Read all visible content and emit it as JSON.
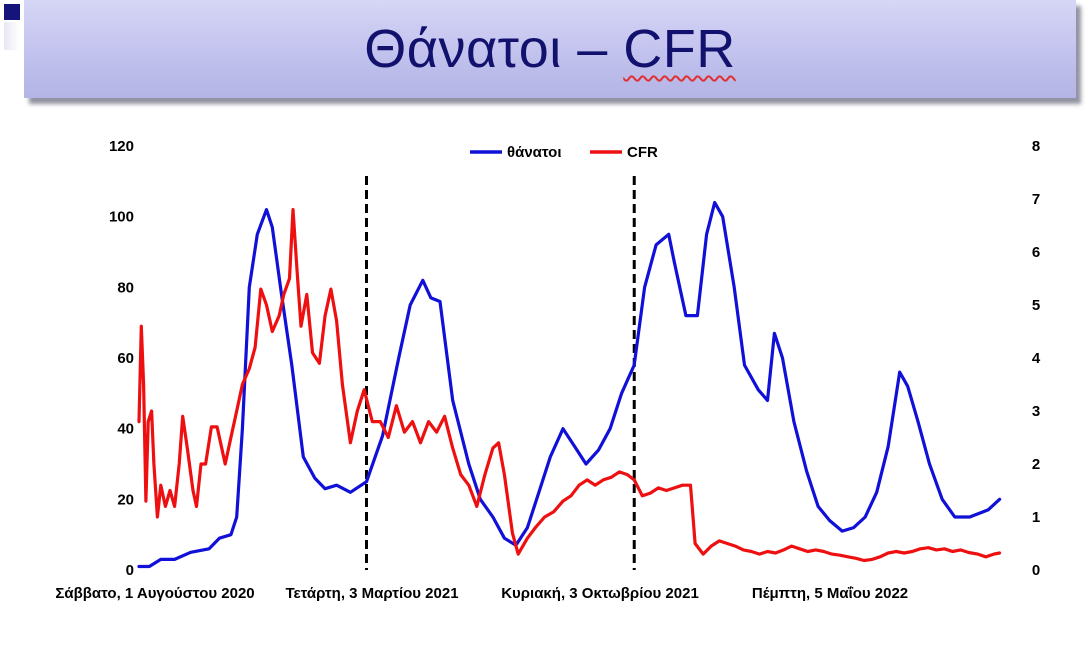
{
  "title": {
    "text_part1": "Θάνατοι – ",
    "text_part2": "CFR"
  },
  "colors": {
    "deaths": "#1010d8",
    "cfr": "#ee1010",
    "title_text": "#12126e",
    "banner": "#c2c2ee"
  },
  "chart_data": {
    "type": "line",
    "title": "",
    "x_tick_labels": [
      "Σάββατο, 1 Αυγούστου 2020",
      "Τετάρτη, 3 Μαρτίου 2021",
      "Κυριακή, 3 Οκτωβρίου 2021",
      "Πέμπτη, 5 Μαΐου 2022"
    ],
    "xlim": [
      "2020-08-01",
      "2022-09-05"
    ],
    "y_left": {
      "lim": [
        0,
        120
      ],
      "ticks": [
        0,
        20,
        40,
        60,
        80,
        100,
        120
      ]
    },
    "y_right": {
      "lim": [
        0,
        8
      ],
      "ticks": [
        0,
        1,
        2,
        3,
        4,
        5,
        6,
        7,
        8
      ]
    },
    "vertical_dashed_lines": [
      "2021-02-15",
      "2021-10-06"
    ],
    "legend": {
      "position": "top-center"
    },
    "grid": false,
    "series": [
      {
        "name": "θάνατοι",
        "axis": "left",
        "points": [
          [
            "2020-08-01",
            1
          ],
          [
            "2020-08-10",
            1
          ],
          [
            "2020-08-20",
            3
          ],
          [
            "2020-09-01",
            3
          ],
          [
            "2020-09-15",
            5
          ],
          [
            "2020-10-01",
            6
          ],
          [
            "2020-10-10",
            9
          ],
          [
            "2020-10-20",
            10
          ],
          [
            "2020-10-25",
            15
          ],
          [
            "2020-10-30",
            40
          ],
          [
            "2020-11-05",
            80
          ],
          [
            "2020-11-12",
            95
          ],
          [
            "2020-11-20",
            102
          ],
          [
            "2020-11-25",
            97
          ],
          [
            "2020-12-03",
            78
          ],
          [
            "2020-12-12",
            58
          ],
          [
            "2020-12-22",
            32
          ],
          [
            "2021-01-01",
            26
          ],
          [
            "2021-01-10",
            23
          ],
          [
            "2021-01-20",
            24
          ],
          [
            "2021-02-01",
            22
          ],
          [
            "2021-02-15",
            25
          ],
          [
            "2021-03-01",
            38
          ],
          [
            "2021-03-15",
            60
          ],
          [
            "2021-03-25",
            75
          ],
          [
            "2021-04-05",
            82
          ],
          [
            "2021-04-12",
            77
          ],
          [
            "2021-04-20",
            76
          ],
          [
            "2021-05-01",
            48
          ],
          [
            "2021-05-15",
            30
          ],
          [
            "2021-05-25",
            20
          ],
          [
            "2021-06-05",
            15
          ],
          [
            "2021-06-15",
            9
          ],
          [
            "2021-06-25",
            7
          ],
          [
            "2021-07-05",
            12
          ],
          [
            "2021-07-15",
            22
          ],
          [
            "2021-07-25",
            32
          ],
          [
            "2021-08-05",
            40
          ],
          [
            "2021-08-15",
            35
          ],
          [
            "2021-08-25",
            30
          ],
          [
            "2021-09-05",
            34
          ],
          [
            "2021-09-15",
            40
          ],
          [
            "2021-09-25",
            50
          ],
          [
            "2021-10-06",
            58
          ],
          [
            "2021-10-15",
            80
          ],
          [
            "2021-10-25",
            92
          ],
          [
            "2021-11-05",
            95
          ],
          [
            "2021-11-10",
            87
          ],
          [
            "2021-11-20",
            72
          ],
          [
            "2021-11-30",
            72
          ],
          [
            "2021-12-08",
            95
          ],
          [
            "2021-12-15",
            104
          ],
          [
            "2021-12-22",
            100
          ],
          [
            "2022-01-01",
            80
          ],
          [
            "2022-01-10",
            58
          ],
          [
            "2022-01-22",
            51
          ],
          [
            "2022-01-30",
            48
          ],
          [
            "2022-02-05",
            67
          ],
          [
            "2022-02-12",
            60
          ],
          [
            "2022-02-22",
            42
          ],
          [
            "2022-03-05",
            28
          ],
          [
            "2022-03-15",
            18
          ],
          [
            "2022-03-25",
            14
          ],
          [
            "2022-04-05",
            11
          ],
          [
            "2022-04-15",
            12
          ],
          [
            "2022-04-25",
            15
          ],
          [
            "2022-05-05",
            22
          ],
          [
            "2022-05-15",
            35
          ],
          [
            "2022-05-25",
            56
          ],
          [
            "2022-06-01",
            52
          ],
          [
            "2022-06-10",
            42
          ],
          [
            "2022-06-20",
            30
          ],
          [
            "2022-07-01",
            20
          ],
          [
            "2022-07-12",
            15
          ],
          [
            "2022-07-25",
            15
          ],
          [
            "2022-08-10",
            17
          ],
          [
            "2022-08-20",
            20
          ]
        ]
      },
      {
        "name": "CFR",
        "axis": "right",
        "points": [
          [
            "2020-08-01",
            2.8
          ],
          [
            "2020-08-03",
            4.6
          ],
          [
            "2020-08-05",
            3.5
          ],
          [
            "2020-08-07",
            1.3
          ],
          [
            "2020-08-09",
            2.8
          ],
          [
            "2020-08-12",
            3.0
          ],
          [
            "2020-08-14",
            2.0
          ],
          [
            "2020-08-17",
            1.0
          ],
          [
            "2020-08-20",
            1.6
          ],
          [
            "2020-08-24",
            1.2
          ],
          [
            "2020-08-28",
            1.5
          ],
          [
            "2020-09-01",
            1.2
          ],
          [
            "2020-09-05",
            2.0
          ],
          [
            "2020-09-08",
            2.9
          ],
          [
            "2020-09-12",
            2.3
          ],
          [
            "2020-09-17",
            1.5
          ],
          [
            "2020-09-20",
            1.2
          ],
          [
            "2020-09-24",
            2.0
          ],
          [
            "2020-09-28",
            2.0
          ],
          [
            "2020-10-03",
            2.7
          ],
          [
            "2020-10-08",
            2.7
          ],
          [
            "2020-10-15",
            2.0
          ],
          [
            "2020-10-20",
            2.5
          ],
          [
            "2020-10-25",
            3.0
          ],
          [
            "2020-10-30",
            3.5
          ],
          [
            "2020-11-05",
            3.8
          ],
          [
            "2020-11-10",
            4.2
          ],
          [
            "2020-11-15",
            5.3
          ],
          [
            "2020-11-20",
            5.0
          ],
          [
            "2020-11-25",
            4.5
          ],
          [
            "2020-12-01",
            4.8
          ],
          [
            "2020-12-05",
            5.2
          ],
          [
            "2020-12-10",
            5.5
          ],
          [
            "2020-12-13",
            6.8
          ],
          [
            "2020-12-17",
            5.5
          ],
          [
            "2020-12-20",
            4.6
          ],
          [
            "2020-12-25",
            5.2
          ],
          [
            "2020-12-30",
            4.1
          ],
          [
            "2021-01-05",
            3.9
          ],
          [
            "2021-01-10",
            4.8
          ],
          [
            "2021-01-15",
            5.3
          ],
          [
            "2021-01-20",
            4.7
          ],
          [
            "2021-01-25",
            3.5
          ],
          [
            "2021-02-01",
            2.4
          ],
          [
            "2021-02-07",
            3.0
          ],
          [
            "2021-02-13",
            3.4
          ],
          [
            "2021-02-20",
            2.8
          ],
          [
            "2021-02-27",
            2.8
          ],
          [
            "2021-03-06",
            2.5
          ],
          [
            "2021-03-13",
            3.1
          ],
          [
            "2021-03-20",
            2.6
          ],
          [
            "2021-03-27",
            2.8
          ],
          [
            "2021-04-03",
            2.4
          ],
          [
            "2021-04-10",
            2.8
          ],
          [
            "2021-04-17",
            2.6
          ],
          [
            "2021-04-24",
            2.9
          ],
          [
            "2021-05-01",
            2.3
          ],
          [
            "2021-05-08",
            1.8
          ],
          [
            "2021-05-15",
            1.6
          ],
          [
            "2021-05-22",
            1.2
          ],
          [
            "2021-05-29",
            1.8
          ],
          [
            "2021-06-05",
            2.3
          ],
          [
            "2021-06-10",
            2.4
          ],
          [
            "2021-06-15",
            1.8
          ],
          [
            "2021-06-22",
            0.7
          ],
          [
            "2021-06-27",
            0.3
          ],
          [
            "2021-07-05",
            0.6
          ],
          [
            "2021-07-12",
            0.8
          ],
          [
            "2021-07-20",
            1.0
          ],
          [
            "2021-07-28",
            1.1
          ],
          [
            "2021-08-05",
            1.3
          ],
          [
            "2021-08-12",
            1.4
          ],
          [
            "2021-08-19",
            1.6
          ],
          [
            "2021-08-26",
            1.7
          ],
          [
            "2021-09-02",
            1.6
          ],
          [
            "2021-09-09",
            1.7
          ],
          [
            "2021-09-16",
            1.75
          ],
          [
            "2021-09-23",
            1.85
          ],
          [
            "2021-09-30",
            1.8
          ],
          [
            "2021-10-06",
            1.7
          ],
          [
            "2021-10-13",
            1.4
          ],
          [
            "2021-10-20",
            1.45
          ],
          [
            "2021-10-27",
            1.55
          ],
          [
            "2021-11-03",
            1.5
          ],
          [
            "2021-11-10",
            1.55
          ],
          [
            "2021-11-17",
            1.6
          ],
          [
            "2021-11-24",
            1.6
          ],
          [
            "2021-11-28",
            0.5
          ],
          [
            "2021-12-05",
            0.3
          ],
          [
            "2021-12-12",
            0.45
          ],
          [
            "2021-12-19",
            0.55
          ],
          [
            "2021-12-26",
            0.5
          ],
          [
            "2022-01-02",
            0.45
          ],
          [
            "2022-01-09",
            0.38
          ],
          [
            "2022-01-16",
            0.35
          ],
          [
            "2022-01-23",
            0.3
          ],
          [
            "2022-01-30",
            0.35
          ],
          [
            "2022-02-06",
            0.32
          ],
          [
            "2022-02-13",
            0.38
          ],
          [
            "2022-02-20",
            0.45
          ],
          [
            "2022-02-27",
            0.4
          ],
          [
            "2022-03-06",
            0.35
          ],
          [
            "2022-03-13",
            0.38
          ],
          [
            "2022-03-20",
            0.35
          ],
          [
            "2022-03-27",
            0.3
          ],
          [
            "2022-04-03",
            0.28
          ],
          [
            "2022-04-10",
            0.25
          ],
          [
            "2022-04-17",
            0.22
          ],
          [
            "2022-04-24",
            0.18
          ],
          [
            "2022-05-01",
            0.2
          ],
          [
            "2022-05-08",
            0.25
          ],
          [
            "2022-05-15",
            0.32
          ],
          [
            "2022-05-22",
            0.35
          ],
          [
            "2022-05-29",
            0.32
          ],
          [
            "2022-06-05",
            0.35
          ],
          [
            "2022-06-12",
            0.4
          ],
          [
            "2022-06-19",
            0.42
          ],
          [
            "2022-06-26",
            0.38
          ],
          [
            "2022-07-03",
            0.4
          ],
          [
            "2022-07-10",
            0.35
          ],
          [
            "2022-07-17",
            0.38
          ],
          [
            "2022-07-24",
            0.33
          ],
          [
            "2022-08-01",
            0.3
          ],
          [
            "2022-08-08",
            0.25
          ],
          [
            "2022-08-15",
            0.3
          ],
          [
            "2022-08-20",
            0.32
          ]
        ]
      }
    ]
  }
}
